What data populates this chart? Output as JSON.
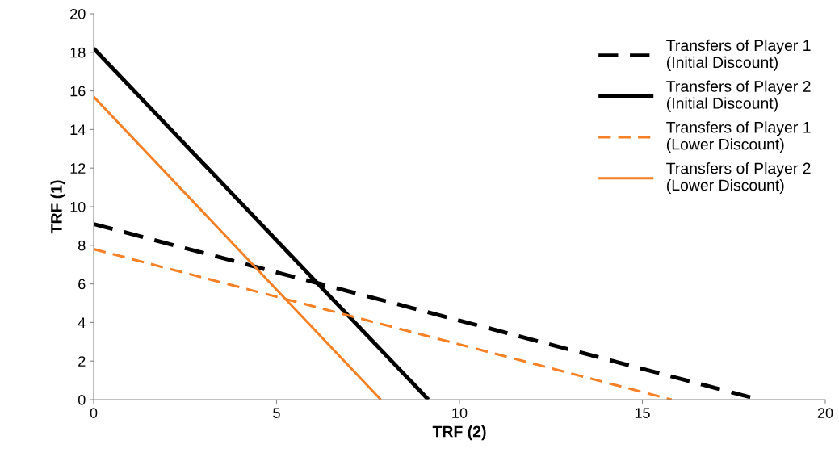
{
  "chart_data": {
    "type": "line",
    "xlabel": "TRF (2)",
    "ylabel": "TRF (1)",
    "xlim": [
      0,
      20
    ],
    "xticks": [
      0,
      5,
      10,
      15,
      20
    ],
    "ylim": [
      0,
      20
    ],
    "yticks": [
      0,
      2,
      4,
      6,
      8,
      10,
      12,
      14,
      16,
      18,
      20
    ],
    "grid": false,
    "legend": "top right",
    "marker": "none",
    "series": [
      {
        "name": "Transfers of Player 1\n(Initial Discount)",
        "color": "#000000",
        "line_style": "dashed",
        "x": [
          0,
          18.2
        ],
        "values": [
          9.1,
          0
        ]
      },
      {
        "name": "Transfers of Player 2\n(Initial Discount)",
        "color": "#000000",
        "line_style": "solid",
        "x": [
          0,
          9.15
        ],
        "values": [
          18.2,
          0
        ]
      },
      {
        "name": "Transfers of Player 1\n(Lower Discount)",
        "color": "#f58025",
        "line_style": "dashed",
        "x": [
          0,
          15.8
        ],
        "values": [
          7.8,
          0
        ]
      },
      {
        "name": "Transfers of Player 2\n(Lower Discount)",
        "color": "#f58025",
        "line_style": "solid",
        "x": [
          0,
          7.85
        ],
        "values": [
          15.7,
          0
        ]
      }
    ]
  }
}
